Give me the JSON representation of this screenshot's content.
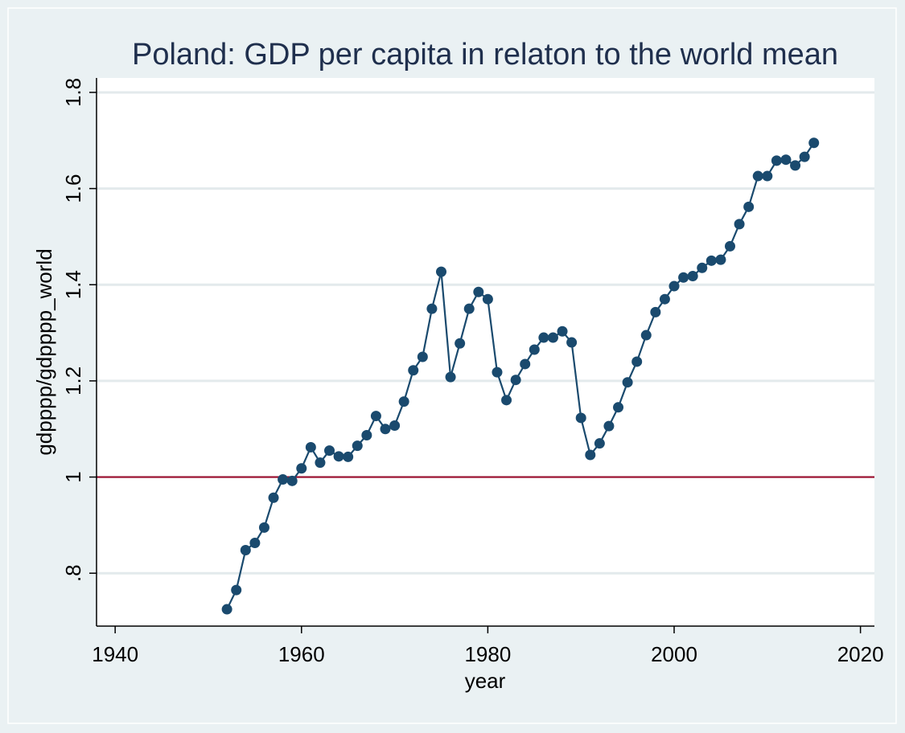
{
  "chart_data": {
    "type": "line",
    "title": "Poland: GDP per capita in relaton to the world mean",
    "xlabel": "year",
    "ylabel": "gdpppp/gdpppp_world",
    "xlim": [
      1938,
      2021.5
    ],
    "ylim": [
      0.69,
      1.83
    ],
    "x_ticks": [
      1940,
      1960,
      1980,
      2000,
      2020
    ],
    "x_tick_labels": [
      "1940",
      "1960",
      "1980",
      "2000",
      "2020"
    ],
    "y_ticks": [
      0.8,
      1.0,
      1.2,
      1.4,
      1.6,
      1.8
    ],
    "y_tick_labels": [
      ".8",
      "1",
      "1.2",
      "1.4",
      "1.6",
      "1.8"
    ],
    "grid": true,
    "reference_line": {
      "y": 1.0,
      "color": "#a01030"
    },
    "series": [
      {
        "name": "gdpppp/gdpppp_world",
        "color": "#1a4a6e",
        "x": [
          1952,
          1953,
          1954,
          1955,
          1956,
          1957,
          1958,
          1959,
          1960,
          1961,
          1962,
          1963,
          1964,
          1965,
          1966,
          1967,
          1968,
          1969,
          1970,
          1971,
          1972,
          1973,
          1974,
          1975,
          1976,
          1977,
          1978,
          1979,
          1980,
          1981,
          1982,
          1983,
          1984,
          1985,
          1986,
          1987,
          1988,
          1989,
          1990,
          1991,
          1992,
          1993,
          1994,
          1995,
          1996,
          1997,
          1998,
          1999,
          2000,
          2001,
          2002,
          2003,
          2004,
          2005,
          2006,
          2007,
          2008,
          2009,
          2010,
          2011,
          2012,
          2013,
          2014,
          2015
        ],
        "values": [
          0.725,
          0.765,
          0.848,
          0.863,
          0.895,
          0.957,
          0.995,
          0.992,
          1.018,
          1.062,
          1.03,
          1.055,
          1.043,
          1.042,
          1.065,
          1.087,
          1.127,
          1.1,
          1.107,
          1.157,
          1.222,
          1.25,
          1.35,
          1.427,
          1.208,
          1.278,
          1.35,
          1.385,
          1.37,
          1.218,
          1.16,
          1.202,
          1.235,
          1.265,
          1.29,
          1.29,
          1.303,
          1.28,
          1.123,
          1.046,
          1.07,
          1.106,
          1.145,
          1.197,
          1.24,
          1.295,
          1.343,
          1.37,
          1.397,
          1.415,
          1.418,
          1.435,
          1.45,
          1.452,
          1.48,
          1.526,
          1.562,
          1.626,
          1.626,
          1.658,
          1.66,
          1.648,
          1.666,
          1.695
        ]
      }
    ],
    "colors": {
      "background": "#eaf1f3",
      "plot_background": "#ffffff",
      "grid": "#e3eaec",
      "title": "#1f2f4d",
      "axis": "#000000"
    }
  }
}
